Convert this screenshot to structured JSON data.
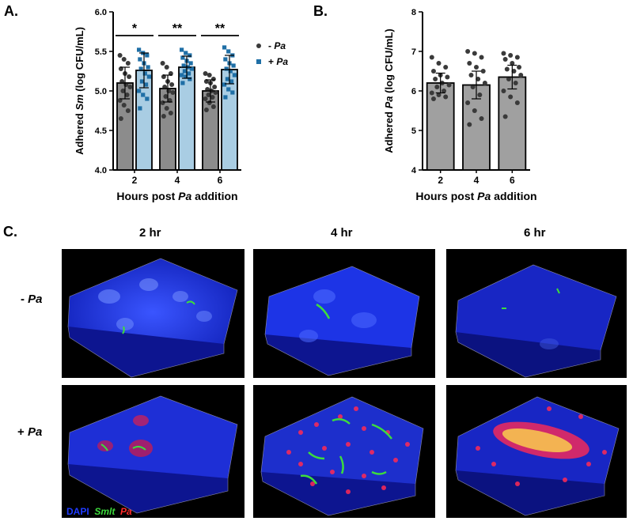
{
  "figure": {
    "panel_A_letter": "A.",
    "panel_B_letter": "B.",
    "panel_C_letter": "C."
  },
  "chart_data": [
    {
      "type": "bar",
      "panel": "A.",
      "ylabel_prefix": "Adhered ",
      "ylabel_italic": "Sm",
      "ylabel_suffix": " (log CFU/mL)",
      "xlabel_prefix": "Hours post ",
      "xlabel_italic": "Pa",
      "xlabel_suffix": " addition",
      "categories": [
        "2",
        "4",
        "6"
      ],
      "ylim": [
        4.0,
        6.0
      ],
      "yticks": [
        "4.0",
        "4.5",
        "5.0",
        "5.5",
        "6.0"
      ],
      "series": [
        {
          "name": "- Pa",
          "color": "#8c8c8c",
          "marker_color": "#3a3a3a",
          "marker": "circle",
          "values": [
            5.1,
            5.03,
            5.0
          ],
          "err": [
            0.2,
            0.17,
            0.14
          ],
          "points": [
            [
              5.45,
              5.4,
              5.35,
              5.28,
              5.22,
              5.18,
              5.12,
              5.08,
              5.05,
              5.0,
              4.95,
              4.88,
              4.82,
              4.75,
              4.65
            ],
            [
              5.35,
              5.3,
              5.22,
              5.18,
              5.12,
              5.08,
              5.05,
              5.0,
              4.98,
              4.93,
              4.88,
              4.85,
              4.78,
              4.72,
              4.68
            ],
            [
              5.22,
              5.2,
              5.15,
              5.12,
              5.1,
              5.05,
              5.02,
              5.0,
              4.98,
              4.95,
              4.92,
              4.9,
              4.85,
              4.8,
              4.76
            ]
          ]
        },
        {
          "name": "+ Pa",
          "color": "#a9cde3",
          "marker_color": "#1f6fa6",
          "marker": "square",
          "values": [
            5.26,
            5.3,
            5.27
          ],
          "err": [
            0.22,
            0.14,
            0.18
          ],
          "points": [
            [
              5.52,
              5.48,
              5.45,
              5.4,
              5.35,
              5.3,
              5.28,
              5.22,
              5.18,
              5.12,
              5.08,
              5.0,
              4.95,
              4.9,
              4.78
            ],
            [
              5.52,
              5.48,
              5.45,
              5.42,
              5.38,
              5.35,
              5.32,
              5.3,
              5.28,
              5.25,
              5.22,
              5.2,
              5.18,
              5.15,
              5.1
            ],
            [
              5.55,
              5.5,
              5.45,
              5.4,
              5.35,
              5.32,
              5.28,
              5.25,
              5.2,
              5.15,
              5.12,
              5.08,
              5.02,
              4.98,
              4.92
            ]
          ]
        }
      ],
      "significance": [
        "*",
        "**",
        "**"
      ],
      "legend": [
        {
          "prefix": "- ",
          "italic": "Pa"
        },
        {
          "prefix": "+ ",
          "italic": "Pa"
        }
      ],
      "legend_position": "right"
    },
    {
      "type": "bar",
      "panel": "B.",
      "ylabel_prefix": "Adhered ",
      "ylabel_italic": "Pa",
      "ylabel_suffix": " (log CFU/mL)",
      "xlabel_prefix": "Hours post ",
      "xlabel_italic": "Pa",
      "xlabel_suffix": " addition",
      "categories": [
        "2",
        "4",
        "6"
      ],
      "ylim": [
        4,
        8
      ],
      "yticks": [
        "4",
        "5",
        "6",
        "7",
        "8"
      ],
      "series": [
        {
          "name": "",
          "color": "#a0a0a0",
          "marker_color": "#3a3a3a",
          "marker": "circle",
          "values": [
            6.2,
            6.15,
            6.35
          ],
          "err": [
            0.25,
            0.35,
            0.3
          ],
          "points": [
            [
              6.85,
              6.7,
              6.6,
              6.5,
              6.4,
              6.35,
              6.3,
              6.2,
              6.15,
              6.1,
              6.0,
              5.95,
              5.9,
              5.85,
              5.8
            ],
            [
              7.0,
              6.95,
              6.85,
              6.7,
              6.6,
              6.5,
              6.4,
              6.3,
              6.2,
              6.1,
              5.9,
              5.7,
              5.5,
              5.3,
              5.15
            ],
            [
              6.95,
              6.9,
              6.85,
              6.8,
              6.7,
              6.6,
              6.55,
              6.5,
              6.4,
              6.3,
              6.2,
              6.0,
              5.85,
              5.7,
              5.35
            ]
          ]
        }
      ]
    }
  ],
  "panelC": {
    "columns": [
      "2 hr",
      "4 hr",
      "6 hr"
    ],
    "rows": [
      {
        "prefix": "- ",
        "italic": "Pa"
      },
      {
        "prefix": "+ ",
        "italic": "Pa"
      }
    ],
    "legend": [
      {
        "text": "DAPI",
        "color": "#1f3bff",
        "italic": false
      },
      {
        "text": "Smlt",
        "color": "#3ddc3d",
        "italic": true
      },
      {
        "text": "Pa",
        "color": "#ff2a2a",
        "italic": true
      }
    ]
  }
}
